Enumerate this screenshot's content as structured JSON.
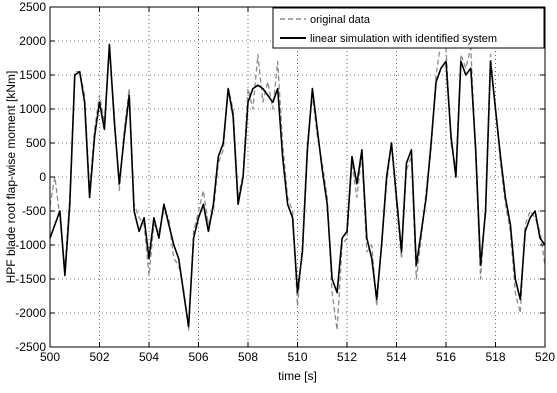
{
  "chart_data": {
    "type": "line",
    "xlabel": "time [s]",
    "ylabel": "HPF blade root flap-wise moment [kNm]",
    "xlim": [
      500,
      520
    ],
    "ylim": [
      -2500,
      2500
    ],
    "x_ticks": [
      500,
      502,
      504,
      506,
      508,
      510,
      512,
      514,
      516,
      518,
      520
    ],
    "x_tick_labels": [
      "500",
      "502",
      "504",
      "506",
      "508",
      "510",
      "512",
      "514",
      "516",
      "518",
      "520"
    ],
    "y_ticks": [
      -2500,
      -2000,
      -1500,
      -1000,
      -500,
      0,
      500,
      1000,
      1500,
      2000,
      2500
    ],
    "y_tick_labels": [
      "-2500",
      "-2000",
      "-1500",
      "-1000",
      "-500",
      "0",
      "500",
      "1000",
      "1500",
      "2000",
      "2500"
    ],
    "grid": true,
    "legend_position": "top-right",
    "series": [
      {
        "name": "original data",
        "color": "#8c8c8c",
        "dash": "dashed",
        "x": [
          500.0,
          500.2,
          500.4,
          500.6,
          500.8,
          501.0,
          501.2,
          501.4,
          501.6,
          501.8,
          502.0,
          502.2,
          502.4,
          502.6,
          502.8,
          503.0,
          503.2,
          503.4,
          503.6,
          503.8,
          504.0,
          504.2,
          504.4,
          504.6,
          504.8,
          505.0,
          505.2,
          505.4,
          505.6,
          505.8,
          506.0,
          506.2,
          506.4,
          506.6,
          506.8,
          507.0,
          507.2,
          507.4,
          507.6,
          507.8,
          508.0,
          508.2,
          508.4,
          508.6,
          508.8,
          509.0,
          509.2,
          509.4,
          509.6,
          509.8,
          510.0,
          510.2,
          510.4,
          510.6,
          510.8,
          511.0,
          511.2,
          511.4,
          511.6,
          511.8,
          512.0,
          512.2,
          512.4,
          512.6,
          512.8,
          513.0,
          513.2,
          513.4,
          513.6,
          513.8,
          514.0,
          514.2,
          514.4,
          514.6,
          514.8,
          515.0,
          515.2,
          515.4,
          515.6,
          515.8,
          516.0,
          516.2,
          516.4,
          516.6,
          516.8,
          517.0,
          517.2,
          517.4,
          517.6,
          517.8,
          518.0,
          518.2,
          518.4,
          518.6,
          518.8,
          519.0,
          519.2,
          519.4,
          519.6,
          519.8,
          520.0
        ],
        "y": [
          -420,
          0,
          -600,
          -1350,
          -300,
          1550,
          1550,
          1200,
          -200,
          700,
          1200,
          800,
          1900,
          900,
          -200,
          700,
          1300,
          -400,
          -600,
          -700,
          -1450,
          -700,
          -800,
          -500,
          -600,
          -1200,
          -1300,
          -1650,
          -2250,
          -800,
          -500,
          -200,
          -700,
          -500,
          200,
          400,
          1300,
          1000,
          -300,
          50,
          1300,
          1000,
          1800,
          1100,
          1400,
          1000,
          1700,
          500,
          -300,
          -500,
          -1900,
          -1000,
          500,
          1200,
          600,
          200,
          -300,
          -1700,
          -2250,
          -1000,
          -900,
          200,
          -300,
          350,
          -1100,
          -1000,
          -1900,
          -1000,
          -100,
          500,
          -400,
          -1200,
          100,
          300,
          -1500,
          -900,
          -200,
          400,
          1500,
          2000,
          1900,
          500,
          100,
          1800,
          1600,
          1900,
          300,
          -1500,
          -400,
          1800,
          1000,
          200,
          -400,
          -800,
          -1700,
          -2000,
          -700,
          -500,
          -600,
          -800,
          -1300
        ]
      },
      {
        "name": "linear simulation with identified system",
        "color": "#000000",
        "dash": "solid",
        "x": [
          500.0,
          500.2,
          500.4,
          500.6,
          500.8,
          501.0,
          501.2,
          501.4,
          501.6,
          501.8,
          502.0,
          502.2,
          502.4,
          502.6,
          502.8,
          503.0,
          503.2,
          503.4,
          503.6,
          503.8,
          504.0,
          504.2,
          504.4,
          504.6,
          504.8,
          505.0,
          505.2,
          505.4,
          505.6,
          505.8,
          506.0,
          506.2,
          506.4,
          506.6,
          506.8,
          507.0,
          507.2,
          507.4,
          507.6,
          507.8,
          508.0,
          508.2,
          508.4,
          508.6,
          508.8,
          509.0,
          509.2,
          509.4,
          509.6,
          509.8,
          510.0,
          510.2,
          510.4,
          510.6,
          510.8,
          511.0,
          511.2,
          511.4,
          511.6,
          511.8,
          512.0,
          512.2,
          512.4,
          512.6,
          512.8,
          513.0,
          513.2,
          513.4,
          513.6,
          513.8,
          514.0,
          514.2,
          514.4,
          514.6,
          514.8,
          515.0,
          515.2,
          515.4,
          515.6,
          515.8,
          516.0,
          516.2,
          516.4,
          516.6,
          516.8,
          517.0,
          517.2,
          517.4,
          517.6,
          517.8,
          518.0,
          518.2,
          518.4,
          518.6,
          518.8,
          519.0,
          519.2,
          519.4,
          519.6,
          519.8,
          520.0
        ],
        "y": [
          -900,
          -700,
          -500,
          -1450,
          -400,
          1500,
          1550,
          1100,
          -300,
          600,
          1100,
          700,
          1950,
          800,
          -100,
          600,
          1200,
          -500,
          -800,
          -600,
          -1200,
          -600,
          -900,
          -400,
          -700,
          -1000,
          -1200,
          -1700,
          -2200,
          -900,
          -600,
          -400,
          -800,
          -400,
          300,
          500,
          1300,
          900,
          -400,
          0,
          1100,
          1300,
          1350,
          1300,
          1200,
          1100,
          1300,
          300,
          -400,
          -600,
          -1700,
          -1100,
          400,
          1300,
          700,
          100,
          -400,
          -1500,
          -1700,
          -900,
          -800,
          300,
          -100,
          400,
          -900,
          -1200,
          -1800,
          -1000,
          0,
          500,
          -300,
          -1100,
          200,
          400,
          -1300,
          -800,
          -300,
          500,
          1400,
          1600,
          1700,
          600,
          0,
          1700,
          1500,
          1600,
          400,
          -1300,
          -500,
          1700,
          1000,
          300,
          -300,
          -700,
          -1500,
          -1800,
          -800,
          -600,
          -500,
          -900,
          -1000
        ]
      }
    ]
  }
}
